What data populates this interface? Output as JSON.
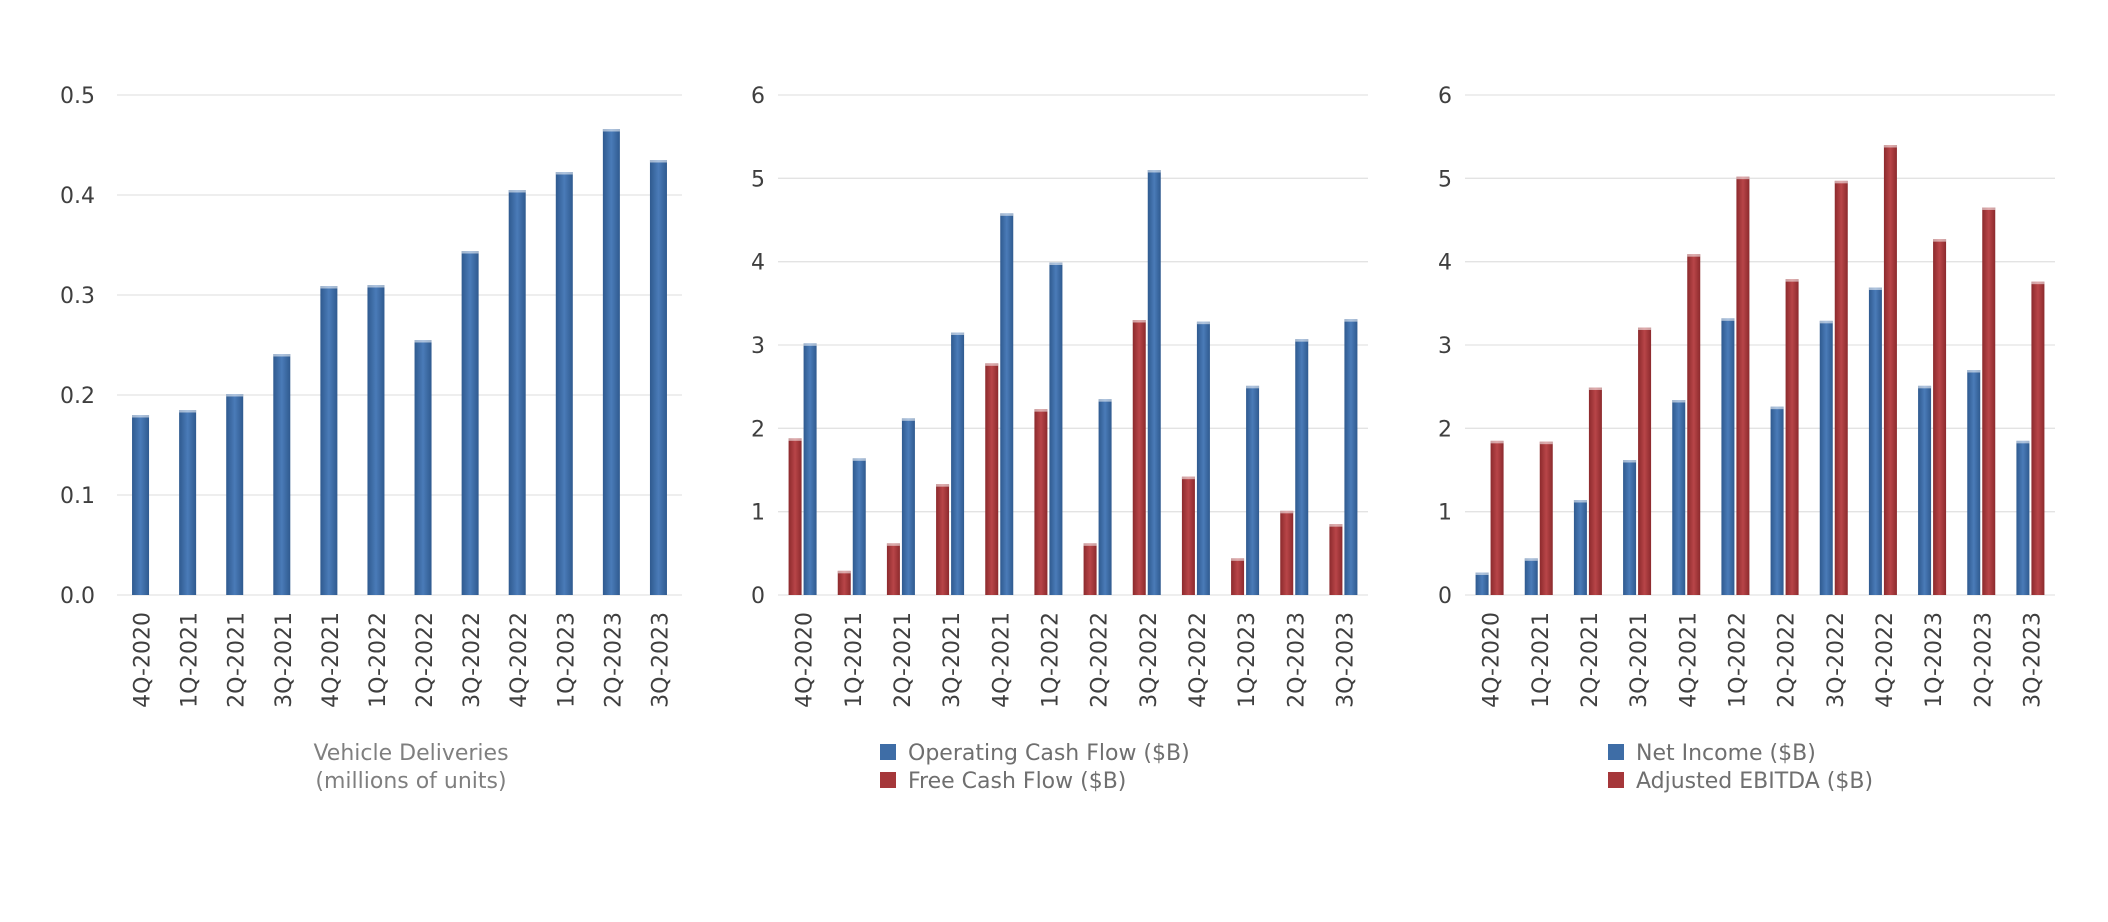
{
  "colors": {
    "blue": "#3e6da6",
    "red": "#a5373a",
    "grid": "#e3e3e3"
  },
  "chart_data": [
    {
      "type": "bar",
      "categories": [
        "4Q-2020",
        "1Q-2021",
        "2Q-2021",
        "3Q-2021",
        "4Q-2021",
        "1Q-2022",
        "2Q-2022",
        "3Q-2022",
        "4Q-2022",
        "1Q-2023",
        "2Q-2023",
        "3Q-2023"
      ],
      "series": [
        {
          "name": "",
          "color": "#3e6da6",
          "values": [
            0.18,
            0.185,
            0.201,
            0.241,
            0.309,
            0.31,
            0.255,
            0.344,
            0.405,
            0.423,
            0.466,
            0.435
          ]
        }
      ],
      "yticks": [
        "0.0",
        "0.1",
        "0.2",
        "0.3",
        "0.4",
        "0.5"
      ],
      "ylim": [
        0,
        0.5
      ],
      "caption": [
        "Vehicle Deliveries",
        "(millions of units)"
      ],
      "legend": []
    },
    {
      "type": "bar",
      "categories": [
        "4Q-2020",
        "1Q-2021",
        "2Q-2021",
        "3Q-2021",
        "4Q-2021",
        "1Q-2022",
        "2Q-2022",
        "3Q-2022",
        "4Q-2022",
        "1Q-2023",
        "2Q-2023",
        "3Q-2023"
      ],
      "series": [
        {
          "name": "Free Cash Flow ($B)",
          "color": "#a5373a",
          "values": [
            1.88,
            0.29,
            0.62,
            1.33,
            2.78,
            2.23,
            0.62,
            3.3,
            1.42,
            0.44,
            1.01,
            0.85
          ]
        },
        {
          "name": "Operating Cash Flow ($B)",
          "color": "#3e6da6",
          "values": [
            3.02,
            1.64,
            2.12,
            3.15,
            4.58,
            3.99,
            2.35,
            5.1,
            3.28,
            2.51,
            3.07,
            3.31
          ]
        }
      ],
      "yticks": [
        "0",
        "1",
        "2",
        "3",
        "4",
        "5",
        "6"
      ],
      "ylim": [
        0,
        6
      ],
      "caption": [],
      "legend": [
        {
          "label": "Operating Cash Flow ($B)",
          "color": "#3e6da6"
        },
        {
          "label": "Free Cash Flow ($B)",
          "color": "#a5373a"
        }
      ]
    },
    {
      "type": "bar",
      "categories": [
        "4Q-2020",
        "1Q-2021",
        "2Q-2021",
        "3Q-2021",
        "4Q-2021",
        "1Q-2022",
        "2Q-2022",
        "3Q-2022",
        "4Q-2022",
        "1Q-2023",
        "2Q-2023",
        "3Q-2023"
      ],
      "series": [
        {
          "name": "Net Income ($B)",
          "color": "#3e6da6",
          "values": [
            0.27,
            0.44,
            1.14,
            1.62,
            2.34,
            3.32,
            2.26,
            3.29,
            3.69,
            2.51,
            2.7,
            1.85
          ]
        },
        {
          "name": "Adjusted EBITDA ($B)",
          "color": "#a5373a",
          "values": [
            1.85,
            1.84,
            2.49,
            3.21,
            4.09,
            5.02,
            3.79,
            4.97,
            5.4,
            4.27,
            4.65,
            3.76
          ]
        }
      ],
      "yticks": [
        "0",
        "1",
        "2",
        "3",
        "4",
        "5",
        "6"
      ],
      "ylim": [
        0,
        6
      ],
      "caption": [],
      "legend": [
        {
          "label": "Net Income ($B)",
          "color": "#3e6da6"
        },
        {
          "label": "Adjusted EBITDA ($B)",
          "color": "#a5373a"
        }
      ]
    }
  ]
}
